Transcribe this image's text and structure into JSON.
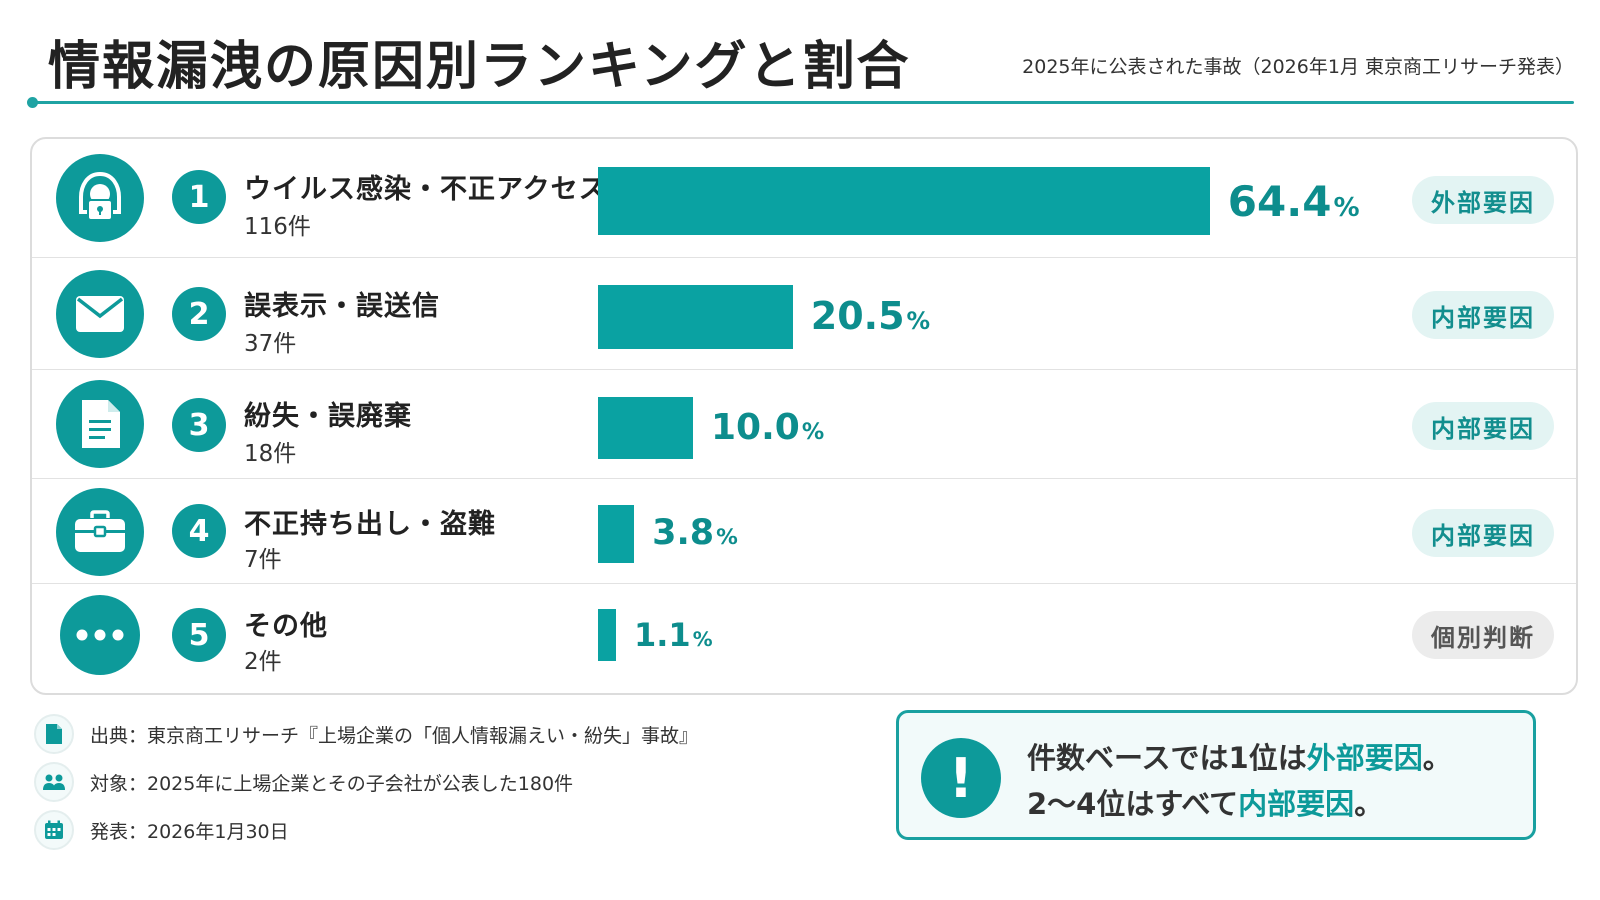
{
  "header": {
    "title": "情報漏洩の原因別ランキングと割合",
    "subtitle": "2025年に公表された事故（2026年1月 東京商工リサーチ発表）"
  },
  "chart_data": {
    "type": "bar",
    "orientation": "horizontal",
    "title": "情報漏洩の原因別ランキングと割合",
    "subtitle": "2025年に公表された事故（2026年1月 東京商工リサーチ発表）",
    "categories": [
      "ウイルス感染・不正アクセス",
      "誤表示・誤送信",
      "紛失・誤廃棄",
      "不正持ち出し・盗難",
      "その他"
    ],
    "series": [
      {
        "values": [
          64.4,
          20.5,
          10.0,
          3.8,
          1.1
        ]
      }
    ],
    "xlim": [
      0,
      100
    ],
    "grid": false,
    "legend": "none",
    "accent_color": "#0aa2a2"
  },
  "rows": [
    {
      "rank": "1",
      "label": "ウイルス感染・不正アクセス",
      "count": "116件",
      "pct": "64.4",
      "unit": "%",
      "tag": "外部要因",
      "tag_style": "teal",
      "icon": "hacker-icon"
    },
    {
      "rank": "2",
      "label": "誤表示・誤送信",
      "count": "37件",
      "pct": "20.5",
      "unit": "%",
      "tag": "内部要因",
      "tag_style": "teal",
      "icon": "envelope-icon"
    },
    {
      "rank": "3",
      "label": "紛失・誤廃棄",
      "count": "18件",
      "pct": "10.0",
      "unit": "%",
      "tag": "内部要因",
      "tag_style": "teal",
      "icon": "document-icon"
    },
    {
      "rank": "4",
      "label": "不正持ち出し・盗難",
      "count": "7件",
      "pct": "3.8",
      "unit": "%",
      "tag": "内部要因",
      "tag_style": "teal",
      "icon": "briefcase-icon"
    },
    {
      "rank": "5",
      "label": "その他",
      "count": "2件",
      "pct": "1.1",
      "unit": "%",
      "tag": "個別判断",
      "tag_style": "gray",
      "icon": "ellipsis-icon"
    }
  ],
  "footer": {
    "source": "出典：東京商工リサーチ『上場企業の「個人情報漏えい・紛失」事故』",
    "target": "対象：2025年に上場企業とその子会社が公表した180件",
    "published": "発表：2026年1月30日"
  },
  "callout": {
    "line1_a": "件数ベースでは1位は",
    "line1_b": "外部要因",
    "line1_c": "。",
    "line2_a": "2〜4位はすべて",
    "line2_b": "内部要因",
    "line2_c": "。"
  },
  "colors": {
    "accent": "#0aa2a2",
    "tag_bg": "#e3f4f3",
    "tag_gray_bg": "#ececec"
  }
}
